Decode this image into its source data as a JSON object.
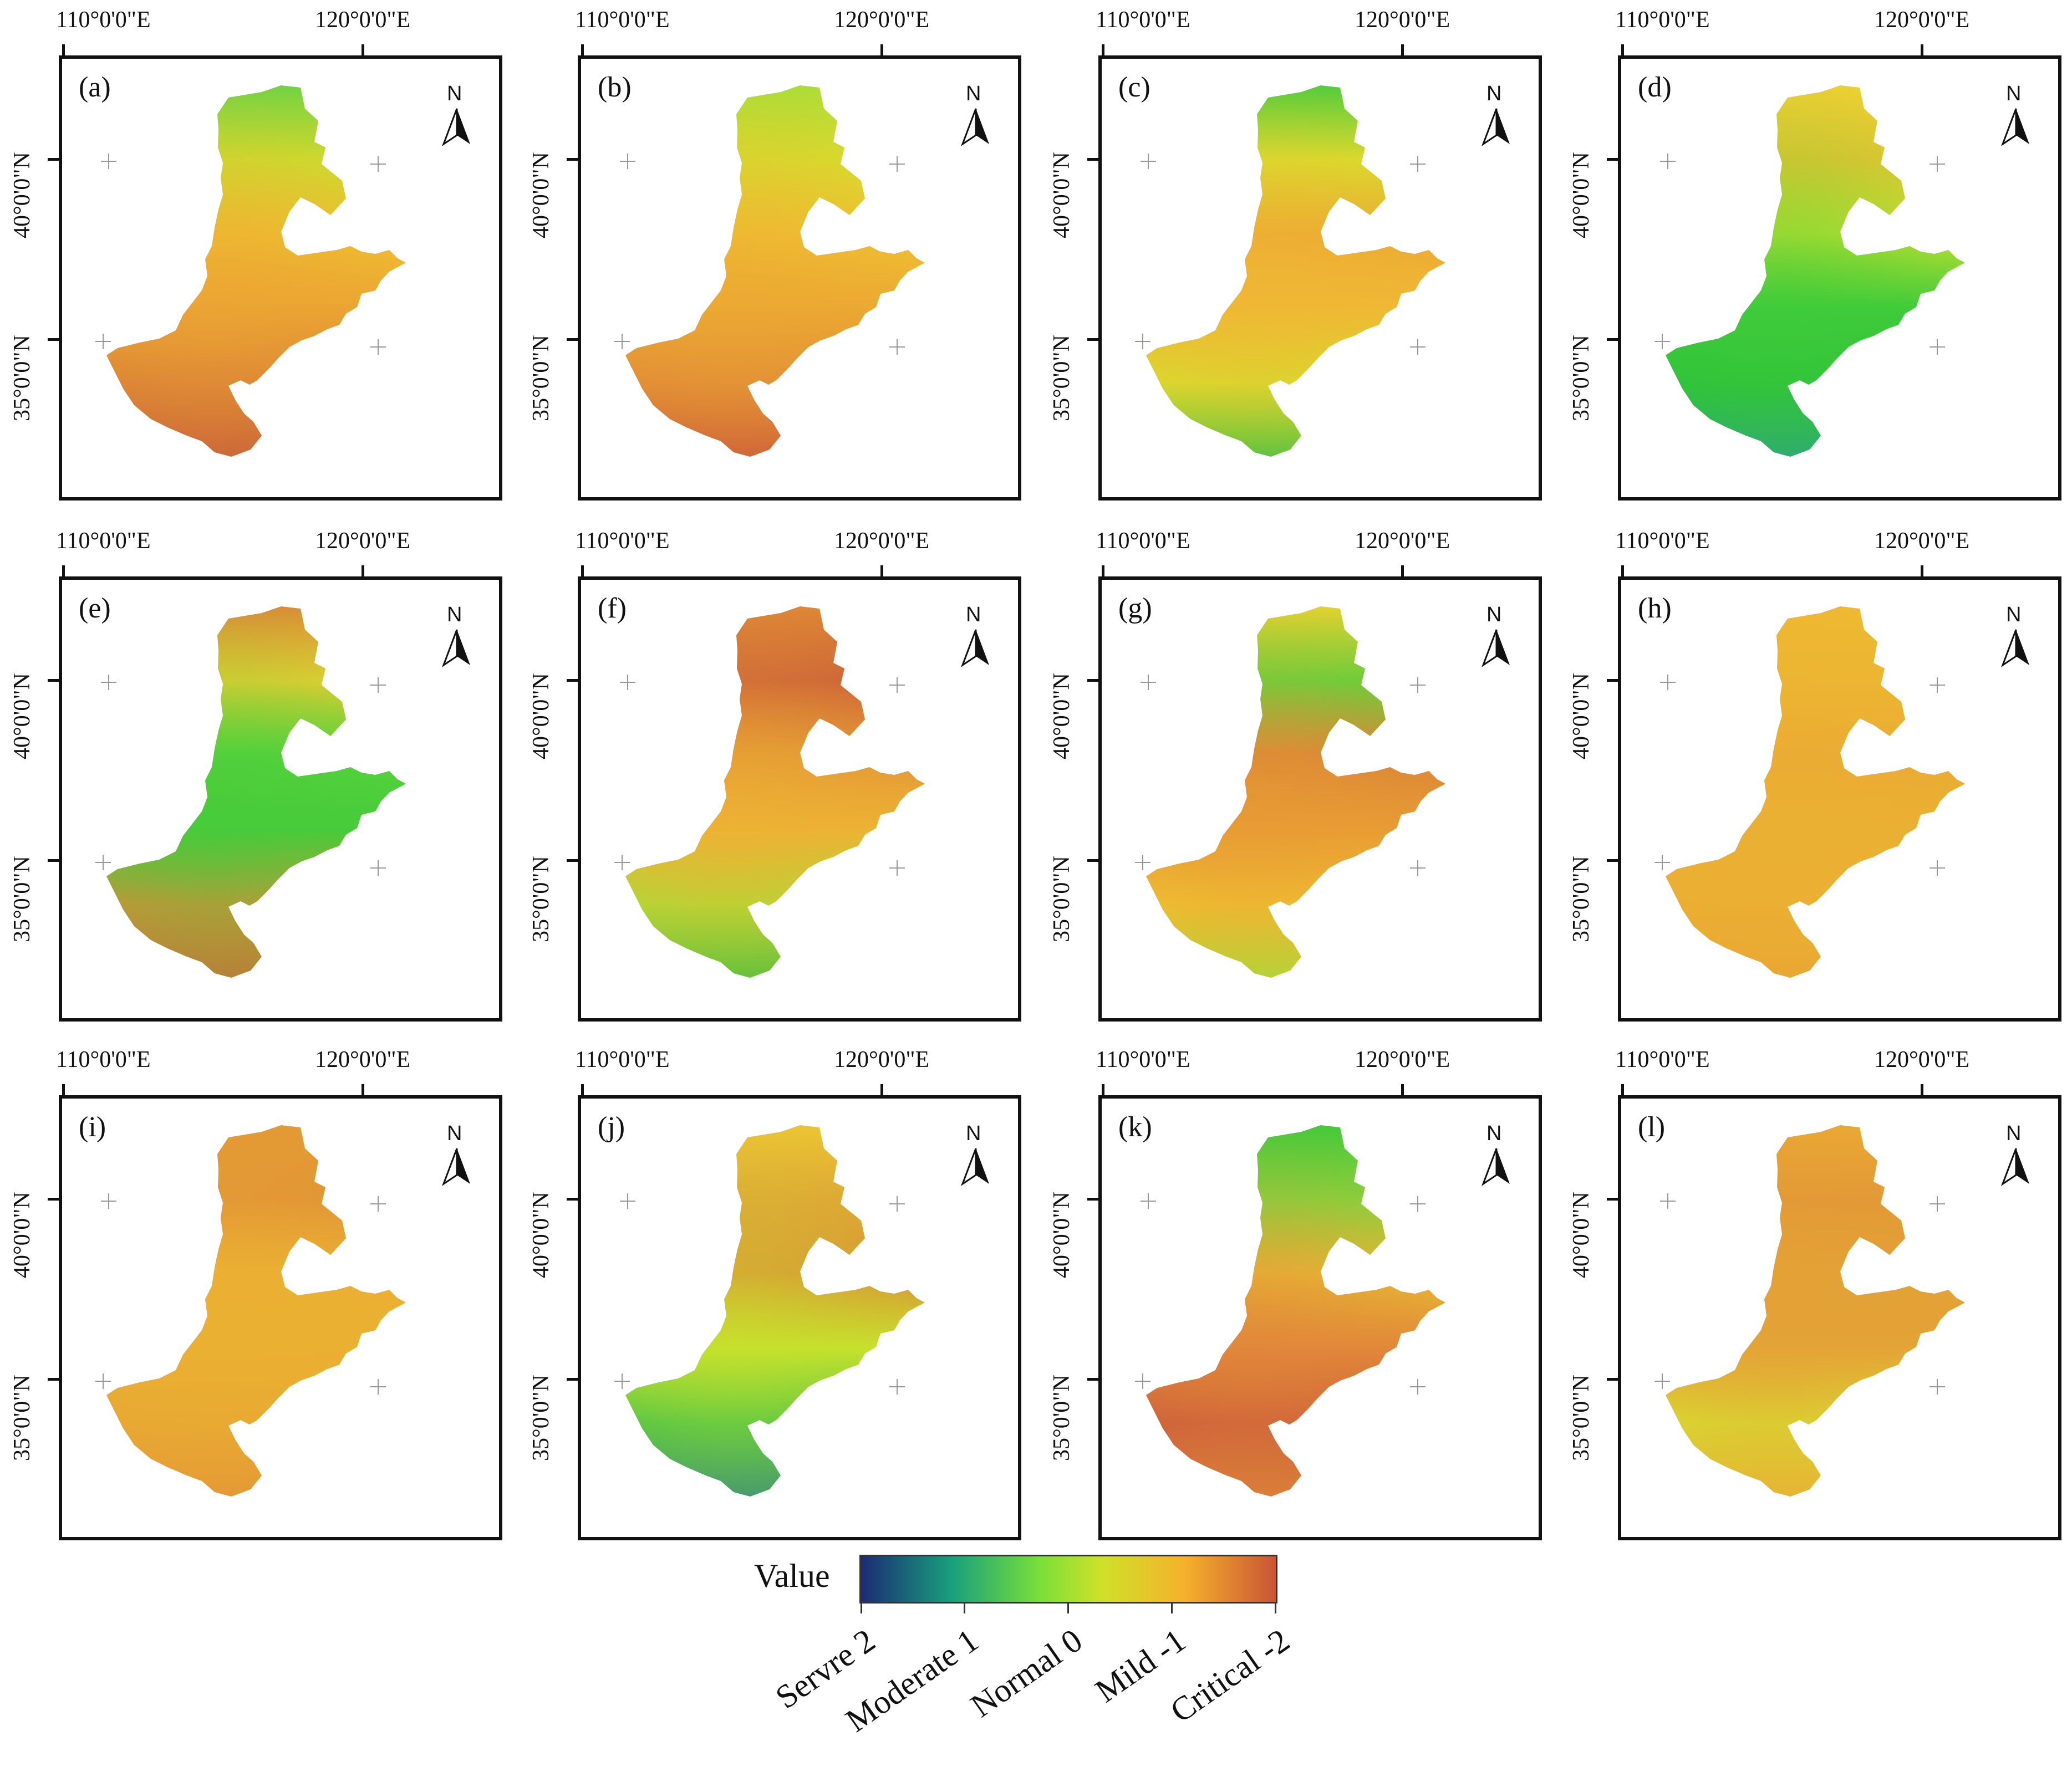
{
  "figure": {
    "coordinates": {
      "lon": [
        "110°0'0\"E",
        "120°0'0\"E"
      ],
      "lat": [
        "40°0'0\"N",
        "35°0'0\"N"
      ]
    },
    "north_label": "N",
    "panels": [
      {
        "label": "(a)",
        "palette": [
          "#6dd443",
          "#c9e12e",
          "#efc230",
          "#eba433",
          "#d77c37",
          "#c55a3a"
        ]
      },
      {
        "label": "(b)",
        "palette": [
          "#a9df36",
          "#d5e02d",
          "#f0c431",
          "#eba833",
          "#df8637",
          "#c95839"
        ]
      },
      {
        "label": "(c)",
        "palette": [
          "#4ccd3b",
          "#d7de2d",
          "#eca833",
          "#efb834",
          "#d3e02c",
          "#3fc540"
        ]
      },
      {
        "label": "(d)",
        "palette": [
          "#f2d032",
          "#efc530",
          "#cfe22e",
          "#3fcb3a",
          "#2cc13a",
          "#2ca57a"
        ]
      },
      {
        "label": "(e)",
        "palette": [
          "#de8a36",
          "#f0ce31",
          "#57d33c",
          "#47cb3a",
          "#de8a37",
          "#d16f37"
        ]
      },
      {
        "label": "(f)",
        "palette": [
          "#dd8636",
          "#ca5c38",
          "#e19335",
          "#edb234",
          "#a6df35",
          "#46c43d"
        ]
      },
      {
        "label": "(g)",
        "palette": [
          "#e3d330",
          "#5ad53b",
          "#d88236",
          "#e89c34",
          "#f0c531",
          "#a8df37"
        ]
      },
      {
        "label": "(h)",
        "palette": [
          "#efb932",
          "#edb632",
          "#ebaa33",
          "#eab033",
          "#ebae33",
          "#e9a533"
        ]
      },
      {
        "label": "(i)",
        "palette": [
          "#e39a34",
          "#e19236",
          "#ebb033",
          "#eab032",
          "#e7a633",
          "#e39435"
        ]
      },
      {
        "label": "(j)",
        "palette": [
          "#edc434",
          "#e1a036",
          "#dc8a36",
          "#c6e12d",
          "#3cbf4a",
          "#2a8a7c"
        ]
      },
      {
        "label": "(k)",
        "palette": [
          "#3ecb3a",
          "#7ed93b",
          "#e8c032",
          "#e1873a",
          "#c9593a",
          "#d87d38"
        ]
      },
      {
        "label": "(l)",
        "palette": [
          "#e9a934",
          "#e39736",
          "#e3a135",
          "#e4a336",
          "#d6e230",
          "#e7b733"
        ]
      }
    ]
  },
  "legend": {
    "title": "Value",
    "labels": [
      "Servre 2",
      "Moderate 1",
      "Normal 0",
      "Mild -1",
      "Critical -2"
    ]
  }
}
